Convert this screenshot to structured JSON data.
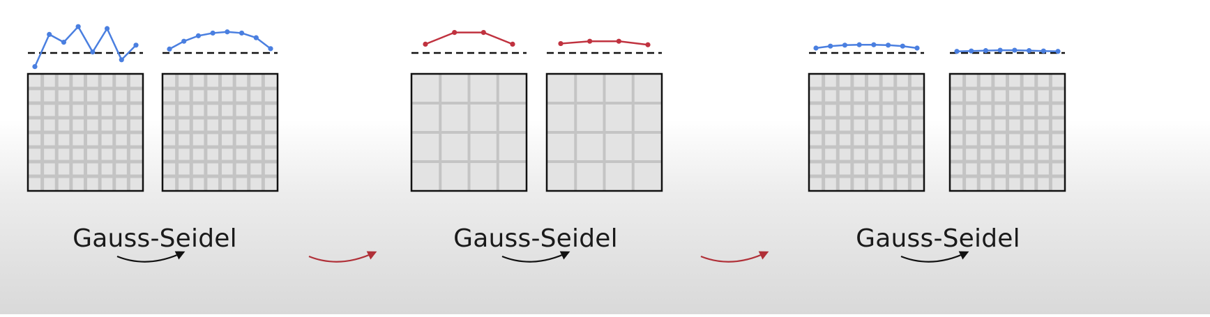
{
  "captions": [
    "Gauss-Seidel",
    "Gauss-Seidel",
    "Gauss-Seidel"
  ],
  "colors": {
    "fine_signal": "#4a7fe0",
    "coarse_signal": "#c0323f",
    "smoother_arrow": "#111111",
    "transfer_arrow": "#b03038",
    "grid_frame": "#111111",
    "grid_line": "#c4c4c4"
  },
  "stages": [
    {
      "grid_divisions": 8,
      "signal_color": "fine_signal",
      "values": [
        -0.7,
        0.95,
        0.55,
        1.35,
        0.05,
        1.25,
        -0.35,
        0.4
      ]
    },
    {
      "grid_divisions": 8,
      "signal_color": "fine_signal",
      "values": [
        0.2,
        0.6,
        0.88,
        1.02,
        1.08,
        1.02,
        0.78,
        0.22
      ]
    },
    {
      "grid_divisions": 4,
      "signal_color": "coarse_signal",
      "values": [
        0.45,
        1.05,
        1.05,
        0.45
      ]
    },
    {
      "grid_divisions": 4,
      "signal_color": "coarse_signal",
      "values": [
        0.48,
        0.6,
        0.6,
        0.42
      ]
    },
    {
      "grid_divisions": 8,
      "signal_color": "fine_signal",
      "values": [
        0.25,
        0.35,
        0.4,
        0.42,
        0.42,
        0.4,
        0.35,
        0.25
      ]
    },
    {
      "grid_divisions": 8,
      "signal_color": "fine_signal",
      "values": [
        0.08,
        0.1,
        0.12,
        0.14,
        0.14,
        0.12,
        0.1,
        0.08
      ]
    }
  ],
  "arrows": [
    "smoother_arrow",
    "transfer_arrow",
    "smoother_arrow",
    "transfer_arrow",
    "smoother_arrow"
  ]
}
